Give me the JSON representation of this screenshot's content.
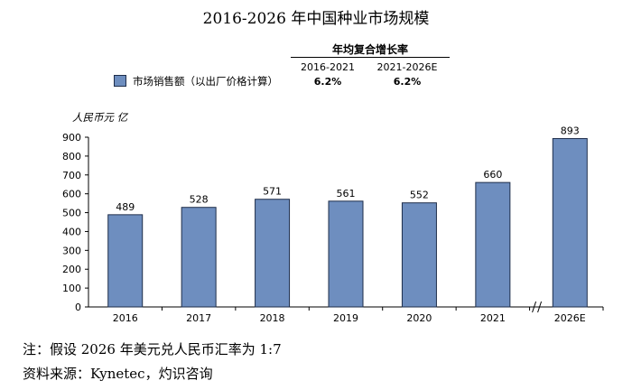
{
  "title": "2016-2026 年中国种业市场规模",
  "cagr": {
    "header": "年均复合增长率",
    "periods": [
      "2016-2021",
      "2021-2026E"
    ],
    "values": [
      "6.2%",
      "6.2%"
    ]
  },
  "legend_label": "市场销售额（以出厂价格计算）",
  "unit_label": "人民币元 亿",
  "notes": {
    "note": "注：假设 2026 年美元兑人民币汇率为 1:7",
    "source": "资料来源：Kynetec，灼识咨询"
  },
  "colors": {
    "bar": "#6e8ebf",
    "bar_stroke": "#1e2d4a"
  },
  "chart_data": {
    "type": "bar",
    "categories": [
      "2016",
      "2017",
      "2018",
      "2019",
      "2020",
      "2021",
      "2026E"
    ],
    "values": [
      489,
      528,
      571,
      561,
      552,
      660,
      893
    ],
    "ylim": [
      0,
      900
    ],
    "yticks": [
      0,
      100,
      200,
      300,
      400,
      500,
      600,
      700,
      800,
      900
    ],
    "axis_break_before": "2026E",
    "grid": false,
    "legend": "top-left"
  }
}
